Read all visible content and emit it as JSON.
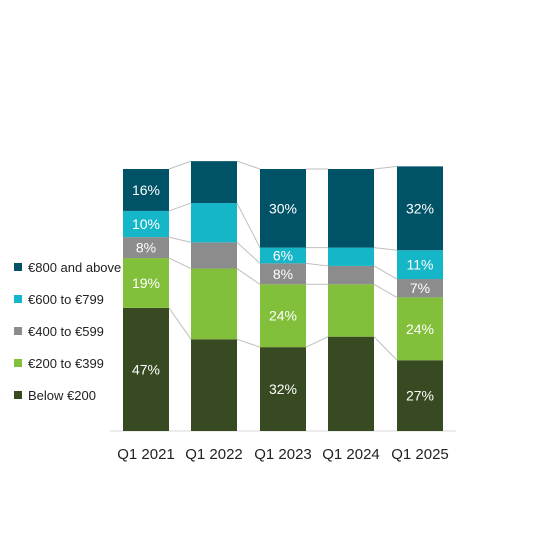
{
  "chart_data": {
    "type": "bar",
    "stacked": true,
    "categories": [
      "Q1 2021",
      "Q1 2022",
      "Q1 2023",
      "Q1 2024",
      "Q1 2025"
    ],
    "series": [
      {
        "name": "Below €200",
        "color": "#374a22",
        "values": [
          47,
          35,
          32,
          36,
          27
        ],
        "labels": [
          "47%",
          "",
          "32%",
          "",
          "27%"
        ],
        "label_color": [
          "#ffffff",
          "",
          "#ffffff",
          "",
          "#ffffff"
        ]
      },
      {
        "name": "€200 to €399",
        "color": "#82bf3a",
        "values": [
          19,
          27,
          24,
          20,
          24
        ],
        "labels": [
          "19%",
          "",
          "24%",
          "",
          "24%"
        ],
        "label_color": [
          "#ffffff",
          "",
          "#ffffff",
          "",
          "#ffffff"
        ]
      },
      {
        "name": "€400 to €599",
        "color": "#8c8c8c",
        "values": [
          8,
          10,
          8,
          7,
          7
        ],
        "labels": [
          "8%",
          "",
          "8%",
          "",
          "7%"
        ],
        "label_color": [
          "#ffffff",
          "",
          "#ffffff",
          "",
          "#ffffff"
        ]
      },
      {
        "name": "€600 to €799",
        "color": "#16b6c9",
        "values": [
          10,
          15,
          6,
          7,
          11
        ],
        "labels": [
          "10%",
          "",
          "6%",
          "",
          "11%"
        ],
        "label_color": [
          "#ffffff",
          "",
          "#ffffff",
          "",
          "#ffffff"
        ]
      },
      {
        "name": "€800 and above",
        "color": "#005366",
        "values": [
          16,
          16,
          30,
          30,
          32
        ],
        "labels": [
          "16%",
          "",
          "30%",
          "",
          "32%"
        ],
        "label_color": [
          "#ffffff",
          "",
          "#ffffff",
          "",
          "#ffffff"
        ]
      }
    ],
    "legend_position": "left",
    "connector_lines": true,
    "title": "",
    "xlabel": "",
    "ylabel": ""
  }
}
